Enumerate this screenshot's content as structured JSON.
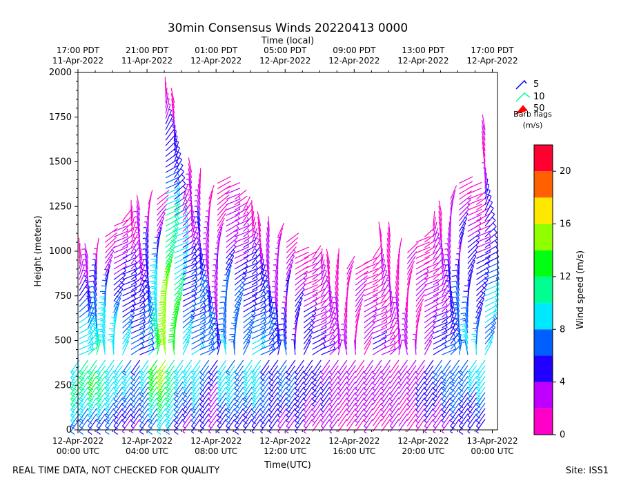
{
  "chart_data": {
    "type": "wind-barb-time-height",
    "title": "30min Consensus Winds 20220413 0000",
    "top_axis_label": "Time (local)",
    "xlabel": "Time(UTC)",
    "ylabel": "Height (meters)",
    "xlim_hours": [
      0,
      24.3
    ],
    "ylim": [
      0,
      2000
    ],
    "y_ticks": [
      0,
      250,
      500,
      750,
      1000,
      1250,
      1500,
      1750,
      2000
    ],
    "y_tick_labels": [
      "0",
      "250",
      "500",
      "750",
      "1000",
      "1250",
      "1500",
      "1750",
      "2000"
    ],
    "x_ticks_hours": [
      0,
      4,
      8,
      12,
      16,
      20,
      24
    ],
    "x_tick_labels": [
      [
        "12-Apr-2022",
        "00:00 UTC"
      ],
      [
        "12-Apr-2022",
        "04:00 UTC"
      ],
      [
        "12-Apr-2022",
        "08:00 UTC"
      ],
      [
        "12-Apr-2022",
        "12:00 UTC"
      ],
      [
        "12-Apr-2022",
        "16:00 UTC"
      ],
      [
        "12-Apr-2022",
        "20:00 UTC"
      ],
      [
        "13-Apr-2022",
        "00:00 UTC"
      ]
    ],
    "top_tick_labels": [
      [
        "17:00 PDT",
        "11-Apr-2022"
      ],
      [
        "21:00 PDT",
        "11-Apr-2022"
      ],
      [
        "01:00 PDT",
        "12-Apr-2022"
      ],
      [
        "05:00 PDT",
        "12-Apr-2022"
      ],
      [
        "09:00 PDT",
        "12-Apr-2022"
      ],
      [
        "13:00 PDT",
        "12-Apr-2022"
      ],
      [
        "17:00 PDT",
        "12-Apr-2022"
      ]
    ],
    "legend": {
      "entries": [
        {
          "label": "5",
          "color": "#0000ff"
        },
        {
          "label": "10",
          "color": "#00ff99"
        },
        {
          "label": "50",
          "color": "#ff0000"
        }
      ],
      "title": "Barb flags",
      "units": "(m/s)"
    },
    "colorbar": {
      "label": "Wind speed (m/s)",
      "tick_values": [
        0,
        4,
        8,
        12,
        16,
        20
      ],
      "tick_labels": [
        "0",
        "4",
        "8",
        "12",
        "16",
        "20"
      ],
      "range": [
        0,
        22
      ],
      "bins": [
        {
          "from": 0,
          "to": 2,
          "color": "#ff00c8"
        },
        {
          "from": 2,
          "to": 4,
          "color": "#c000ff"
        },
        {
          "from": 4,
          "to": 6,
          "color": "#2000ff"
        },
        {
          "from": 6,
          "to": 8,
          "color": "#0060ff"
        },
        {
          "from": 8,
          "to": 10,
          "color": "#00e8ff"
        },
        {
          "from": 10,
          "to": 12,
          "color": "#00ff90"
        },
        {
          "from": 12,
          "to": 14,
          "color": "#00ff10"
        },
        {
          "from": 14,
          "to": 16,
          "color": "#90ff00"
        },
        {
          "from": 16,
          "to": 18,
          "color": "#ffe800"
        },
        {
          "from": 18,
          "to": 20,
          "color": "#ff6000"
        },
        {
          "from": 20,
          "to": 22,
          "color": "#ff0030"
        }
      ]
    },
    "barb_profile_hours": [
      0,
      0.5,
      1,
      1.5,
      2,
      2.5,
      3,
      3.5,
      4,
      4.5,
      5,
      5.5,
      6,
      6.5,
      7,
      7.5,
      8,
      8.5,
      9,
      9.5,
      10,
      10.5,
      11,
      11.5,
      12,
      12.5,
      13,
      13.5,
      14,
      14.5,
      15,
      15.5,
      16,
      16.5,
      17,
      17.5,
      18,
      18.5,
      19,
      19.5,
      20,
      20.5,
      21,
      21.5,
      22,
      22.5,
      23,
      23.5
    ],
    "profile_top_m": [
      1000,
      980,
      1000,
      1100,
      1150,
      1180,
      1200,
      1250,
      1280,
      1300,
      1900,
      1850,
      1300,
      1450,
      1400,
      1300,
      1380,
      1350,
      1300,
      1250,
      1200,
      1150,
      1120,
      1080,
      1050,
      1000,
      980,
      960,
      950,
      940,
      930,
      920,
      920,
      930,
      960,
      1100,
      1100,
      1000,
      1000,
      1050,
      1100,
      1150,
      1200,
      1300,
      1400,
      1350,
      1300,
      1700
    ],
    "profile_peak_speed_ms": [
      11,
      11,
      12,
      11,
      10,
      9,
      8,
      7,
      9,
      13,
      16,
      13,
      9,
      8,
      9,
      7,
      5,
      9,
      9,
      8,
      9,
      9,
      7,
      6,
      7,
      6,
      6,
      5,
      5,
      4,
      4,
      3,
      3,
      3,
      4,
      3,
      3,
      3,
      3,
      3,
      4,
      5,
      6,
      7,
      8,
      8,
      8,
      9
    ],
    "profile_top_speed_ms": [
      1,
      1,
      1,
      1,
      1,
      1,
      1,
      1,
      1,
      1,
      1,
      1,
      1,
      1,
      1,
      1,
      1,
      1,
      1,
      1,
      1,
      1,
      1,
      1,
      1,
      1,
      1,
      1,
      1,
      1,
      1,
      1,
      1,
      1,
      1,
      1,
      1,
      1,
      1,
      1,
      1,
      1,
      1,
      1,
      1,
      1,
      1,
      1
    ]
  },
  "footer": {
    "disclaimer": "REAL TIME DATA, NOT CHECKED FOR QUALITY",
    "site": "Site: ISS1"
  }
}
